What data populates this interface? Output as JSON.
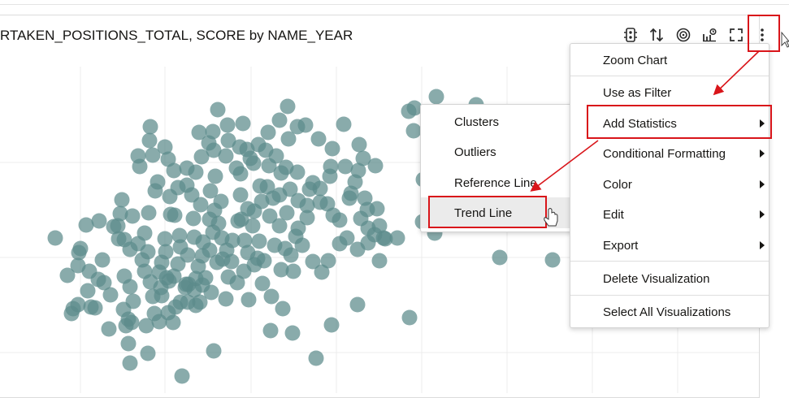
{
  "viz": {
    "title": "RTAKEN_POSITIONS_TOTAL, SCORE by NAME_YEAR",
    "dot_color": "#5c8a8a"
  },
  "toolbar": {
    "icons": [
      "filter-icon",
      "sort-icon",
      "target-icon",
      "statistics-icon",
      "expand-icon",
      "more-options-icon"
    ]
  },
  "main_menu": {
    "items": [
      {
        "label": "Zoom Chart"
      },
      {
        "label": "Use as Filter"
      },
      {
        "label": "Add Statistics"
      },
      {
        "label": "Conditional Formatting"
      },
      {
        "label": "Color"
      },
      {
        "label": "Edit"
      },
      {
        "label": "Export"
      },
      {
        "label": "Delete Visualization"
      },
      {
        "label": "Select All Visualizations"
      }
    ]
  },
  "stats_submenu": {
    "items": [
      {
        "label": "Clusters"
      },
      {
        "label": "Outliers"
      },
      {
        "label": "Reference Line"
      },
      {
        "label": "Trend Line"
      }
    ]
  },
  "annotation_color": "#d9151a"
}
